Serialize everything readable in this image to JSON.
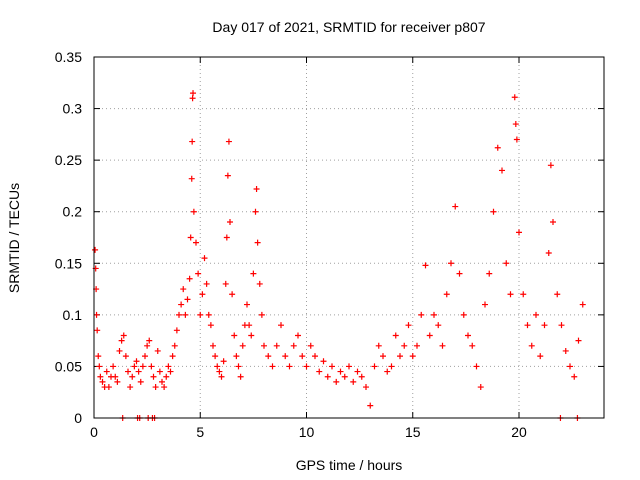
{
  "chart_data": {
    "type": "scatter",
    "title": "Day 017 of 2021, SRMTID for receiver p807",
    "xlabel": "GPS time / hours",
    "ylabel": "SRMTID / TECUs",
    "xlim": [
      0,
      24
    ],
    "ylim": [
      0,
      0.35
    ],
    "x_ticks": [
      0,
      5,
      10,
      15,
      20
    ],
    "x_tick_labels": [
      "0",
      "5",
      "10",
      "15",
      "20"
    ],
    "y_ticks": [
      0,
      0.05,
      0.1,
      0.15,
      0.2,
      0.25,
      0.3,
      0.35
    ],
    "y_tick_labels": [
      "0",
      "0.05",
      "0.1",
      "0.15",
      "0.2",
      "0.25",
      "0.3",
      "0.35"
    ],
    "grid": true,
    "marker": "plus",
    "color": "#ff0000",
    "series": [
      {
        "name": "SRMTID",
        "points": [
          [
            0.05,
            0.163
          ],
          [
            0.08,
            0.145
          ],
          [
            0.1,
            0.125
          ],
          [
            0.12,
            0.1
          ],
          [
            0.15,
            0.085
          ],
          [
            0.2,
            0.06
          ],
          [
            0.25,
            0.05
          ],
          [
            0.3,
            0.04
          ],
          [
            0.4,
            0.035
          ],
          [
            0.5,
            0.03
          ],
          [
            0.6,
            0.045
          ],
          [
            0.7,
            0.03
          ],
          [
            0.8,
            0.04
          ],
          [
            0.9,
            0.05
          ],
          [
            1.0,
            0.04
          ],
          [
            1.1,
            0.035
          ],
          [
            1.2,
            0.065
          ],
          [
            1.3,
            0.075
          ],
          [
            1.4,
            0.08
          ],
          [
            1.5,
            0.06
          ],
          [
            1.6,
            0.045
          ],
          [
            1.7,
            0.03
          ],
          [
            1.8,
            0.04
          ],
          [
            1.9,
            0.05
          ],
          [
            2.0,
            0.055
          ],
          [
            2.1,
            0.045
          ],
          [
            2.2,
            0.035
          ],
          [
            2.3,
            0.05
          ],
          [
            2.4,
            0.06
          ],
          [
            2.5,
            0.07
          ],
          [
            2.6,
            0.075
          ],
          [
            2.7,
            0.05
          ],
          [
            2.8,
            0.04
          ],
          [
            2.9,
            0.03
          ],
          [
            3.0,
            0.065
          ],
          [
            3.1,
            0.045
          ],
          [
            3.2,
            0.035
          ],
          [
            3.3,
            0.03
          ],
          [
            3.4,
            0.04
          ],
          [
            3.5,
            0.05
          ],
          [
            3.6,
            0.045
          ],
          [
            3.7,
            0.06
          ],
          [
            3.8,
            0.07
          ],
          [
            3.9,
            0.085
          ],
          [
            4.0,
            0.1
          ],
          [
            4.1,
            0.11
          ],
          [
            4.2,
            0.125
          ],
          [
            4.3,
            0.1
          ],
          [
            4.4,
            0.115
          ],
          [
            4.5,
            0.135
          ],
          [
            4.55,
            0.175
          ],
          [
            4.6,
            0.232
          ],
          [
            4.62,
            0.268
          ],
          [
            4.64,
            0.31
          ],
          [
            4.66,
            0.315
          ],
          [
            4.7,
            0.2
          ],
          [
            4.8,
            0.17
          ],
          [
            4.9,
            0.14
          ],
          [
            5.0,
            0.1
          ],
          [
            5.1,
            0.12
          ],
          [
            5.2,
            0.155
          ],
          [
            5.3,
            0.13
          ],
          [
            5.4,
            0.1
          ],
          [
            5.5,
            0.09
          ],
          [
            5.6,
            0.07
          ],
          [
            5.7,
            0.06
          ],
          [
            5.8,
            0.05
          ],
          [
            5.9,
            0.045
          ],
          [
            6.0,
            0.04
          ],
          [
            6.1,
            0.055
          ],
          [
            6.2,
            0.13
          ],
          [
            6.25,
            0.175
          ],
          [
            6.3,
            0.235
          ],
          [
            6.35,
            0.268
          ],
          [
            6.4,
            0.19
          ],
          [
            6.5,
            0.12
          ],
          [
            6.6,
            0.08
          ],
          [
            6.7,
            0.06
          ],
          [
            6.8,
            0.05
          ],
          [
            6.9,
            0.04
          ],
          [
            7.0,
            0.07
          ],
          [
            7.1,
            0.09
          ],
          [
            7.2,
            0.11
          ],
          [
            7.3,
            0.09
          ],
          [
            7.4,
            0.08
          ],
          [
            7.5,
            0.14
          ],
          [
            7.6,
            0.2
          ],
          [
            7.65,
            0.222
          ],
          [
            7.7,
            0.17
          ],
          [
            7.8,
            0.13
          ],
          [
            7.9,
            0.1
          ],
          [
            8.0,
            0.07
          ],
          [
            8.2,
            0.06
          ],
          [
            8.4,
            0.05
          ],
          [
            8.6,
            0.07
          ],
          [
            8.8,
            0.09
          ],
          [
            9.0,
            0.06
          ],
          [
            9.2,
            0.05
          ],
          [
            9.4,
            0.07
          ],
          [
            9.6,
            0.08
          ],
          [
            9.8,
            0.06
          ],
          [
            10.0,
            0.05
          ],
          [
            10.2,
            0.07
          ],
          [
            10.4,
            0.06
          ],
          [
            10.6,
            0.045
          ],
          [
            10.8,
            0.055
          ],
          [
            11.0,
            0.04
          ],
          [
            11.2,
            0.05
          ],
          [
            11.4,
            0.035
          ],
          [
            11.6,
            0.045
          ],
          [
            11.8,
            0.04
          ],
          [
            12.0,
            0.05
          ],
          [
            12.2,
            0.035
          ],
          [
            12.4,
            0.045
          ],
          [
            12.6,
            0.04
          ],
          [
            12.8,
            0.03
          ],
          [
            13.0,
            0.012
          ],
          [
            13.2,
            0.05
          ],
          [
            13.4,
            0.07
          ],
          [
            13.6,
            0.06
          ],
          [
            13.8,
            0.045
          ],
          [
            14.0,
            0.05
          ],
          [
            14.2,
            0.08
          ],
          [
            14.4,
            0.06
          ],
          [
            14.6,
            0.07
          ],
          [
            14.8,
            0.09
          ],
          [
            15.0,
            0.06
          ],
          [
            15.2,
            0.07
          ],
          [
            15.4,
            0.1
          ],
          [
            15.6,
            0.148
          ],
          [
            15.8,
            0.08
          ],
          [
            16.0,
            0.1
          ],
          [
            16.2,
            0.09
          ],
          [
            16.4,
            0.07
          ],
          [
            16.6,
            0.12
          ],
          [
            16.8,
            0.15
          ],
          [
            17.0,
            0.205
          ],
          [
            17.2,
            0.14
          ],
          [
            17.4,
            0.1
          ],
          [
            17.6,
            0.08
          ],
          [
            17.8,
            0.07
          ],
          [
            18.0,
            0.05
          ],
          [
            18.2,
            0.03
          ],
          [
            18.4,
            0.11
          ],
          [
            18.6,
            0.14
          ],
          [
            18.8,
            0.2
          ],
          [
            19.0,
            0.262
          ],
          [
            19.2,
            0.24
          ],
          [
            19.4,
            0.15
          ],
          [
            19.6,
            0.12
          ],
          [
            19.8,
            0.311
          ],
          [
            19.85,
            0.285
          ],
          [
            19.9,
            0.27
          ],
          [
            20.0,
            0.18
          ],
          [
            20.2,
            0.12
          ],
          [
            20.4,
            0.09
          ],
          [
            20.6,
            0.07
          ],
          [
            20.8,
            0.1
          ],
          [
            21.0,
            0.06
          ],
          [
            21.2,
            0.09
          ],
          [
            21.4,
            0.16
          ],
          [
            21.5,
            0.245
          ],
          [
            21.6,
            0.19
          ],
          [
            21.8,
            0.12
          ],
          [
            22.0,
            0.09
          ],
          [
            22.2,
            0.065
          ],
          [
            22.4,
            0.05
          ],
          [
            22.6,
            0.04
          ],
          [
            22.8,
            0.075
          ],
          [
            23.0,
            0.11
          ],
          [
            1.35,
            0.0
          ],
          [
            2.05,
            0.0
          ],
          [
            2.15,
            0.0
          ],
          [
            2.55,
            0.0
          ],
          [
            2.75,
            0.0
          ],
          [
            2.85,
            0.0
          ],
          [
            21.95,
            0.0
          ],
          [
            22.75,
            0.0
          ]
        ]
      }
    ]
  }
}
